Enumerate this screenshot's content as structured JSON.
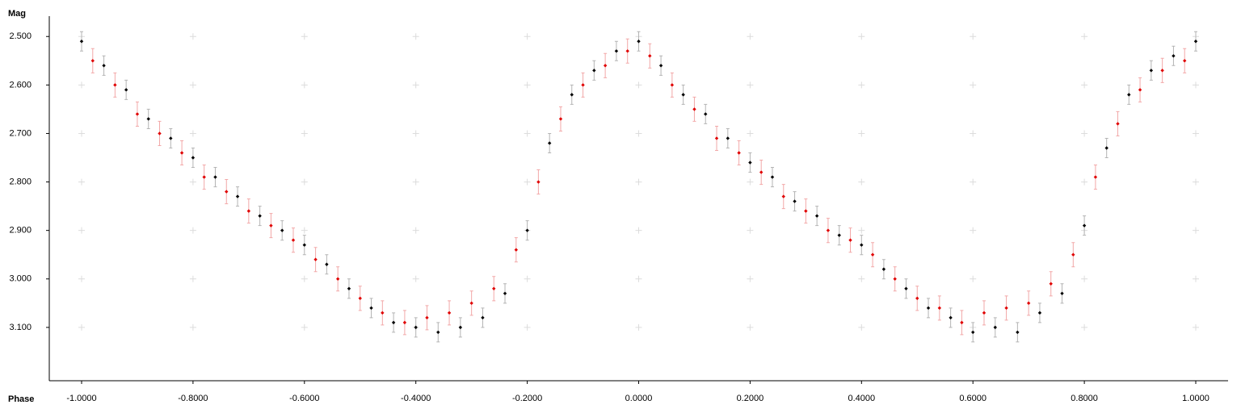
{
  "chart_data": {
    "type": "scatter",
    "x_label": "Phase",
    "y_label": "Mag",
    "xlim": [
      -1.058,
      1.058
    ],
    "ylim": [
      2.458,
      3.21
    ],
    "y_inverted": true,
    "grid": "crosses",
    "xticks": [
      {
        "value": -1,
        "label": "-1.0000"
      },
      {
        "value": -0.8,
        "label": "-0.8000"
      },
      {
        "value": -0.6,
        "label": "-0.6000"
      },
      {
        "value": -0.4,
        "label": "-0.4000"
      },
      {
        "value": -0.2,
        "label": "-0.2000"
      },
      {
        "value": 0,
        "label": "0.0000"
      },
      {
        "value": 0.2,
        "label": "0.2000"
      },
      {
        "value": 0.4,
        "label": "0.4000"
      },
      {
        "value": 0.6,
        "label": "0.6000"
      },
      {
        "value": 0.8,
        "label": "0.8000"
      },
      {
        "value": 1,
        "label": "1.0000"
      }
    ],
    "yticks": [
      {
        "value": 2.5,
        "label": "2.500"
      },
      {
        "value": 2.6,
        "label": "2.600"
      },
      {
        "value": 2.7,
        "label": "2.700"
      },
      {
        "value": 2.8,
        "label": "2.800"
      },
      {
        "value": 2.9,
        "label": "2.900"
      },
      {
        "value": 3.0,
        "label": "3.000"
      },
      {
        "value": 3.1,
        "label": "3.100"
      }
    ],
    "series": [
      {
        "color": "#000000",
        "error_color": "#b4b4b4",
        "error": 0.02,
        "x": [
          -1.0,
          -0.96,
          -0.92,
          -0.88,
          -0.84,
          -0.8,
          -0.76,
          -0.72,
          -0.68,
          -0.64,
          -0.6,
          -0.56,
          -0.52,
          -0.48,
          -0.44,
          -0.4,
          -0.36,
          -0.32,
          -0.28,
          -0.24,
          -0.2,
          -0.16,
          -0.12,
          -0.08,
          -0.04,
          0.0,
          0.04,
          0.08,
          0.12,
          0.16,
          0.2,
          0.24,
          0.28,
          0.32,
          0.36,
          0.4,
          0.44,
          0.48,
          0.52,
          0.56,
          0.6,
          0.64,
          0.68,
          0.72,
          0.76,
          0.8,
          0.84,
          0.88,
          0.92,
          0.96,
          1.0
        ],
        "values": [
          2.51,
          2.56,
          2.61,
          2.67,
          2.71,
          2.75,
          2.79,
          2.83,
          2.87,
          2.9,
          2.93,
          2.97,
          3.02,
          3.06,
          3.09,
          3.1,
          3.11,
          3.1,
          3.08,
          3.03,
          2.9,
          2.72,
          2.62,
          2.57,
          2.53,
          2.51,
          2.56,
          2.62,
          2.66,
          2.71,
          2.76,
          2.79,
          2.84,
          2.87,
          2.91,
          2.93,
          2.98,
          3.02,
          3.06,
          3.08,
          3.11,
          3.1,
          3.11,
          3.07,
          3.03,
          2.89,
          2.73,
          2.62,
          2.57,
          2.54,
          2.51
        ]
      },
      {
        "color": "#e00000",
        "error_color": "#f2a8a8",
        "error": 0.025,
        "x": [
          -0.98,
          -0.94,
          -0.9,
          -0.86,
          -0.82,
          -0.78,
          -0.74,
          -0.7,
          -0.66,
          -0.62,
          -0.58,
          -0.54,
          -0.5,
          -0.46,
          -0.42,
          -0.38,
          -0.34,
          -0.3,
          -0.26,
          -0.22,
          -0.18,
          -0.14,
          -0.1,
          -0.06,
          -0.02,
          0.02,
          0.06,
          0.1,
          0.14,
          0.18,
          0.22,
          0.26,
          0.3,
          0.34,
          0.38,
          0.42,
          0.46,
          0.5,
          0.54,
          0.58,
          0.62,
          0.66,
          0.7,
          0.74,
          0.78,
          0.82,
          0.86,
          0.9,
          0.94,
          0.98
        ],
        "values": [
          2.55,
          2.6,
          2.66,
          2.7,
          2.74,
          2.79,
          2.82,
          2.86,
          2.89,
          2.92,
          2.96,
          3.0,
          3.04,
          3.07,
          3.09,
          3.08,
          3.07,
          3.05,
          3.02,
          2.94,
          2.8,
          2.67,
          2.6,
          2.56,
          2.53,
          2.54,
          2.6,
          2.65,
          2.71,
          2.74,
          2.78,
          2.83,
          2.86,
          2.9,
          2.92,
          2.95,
          3.0,
          3.04,
          3.06,
          3.09,
          3.07,
          3.06,
          3.05,
          3.01,
          2.95,
          2.79,
          2.68,
          2.61,
          2.57,
          2.55
        ]
      }
    ]
  }
}
